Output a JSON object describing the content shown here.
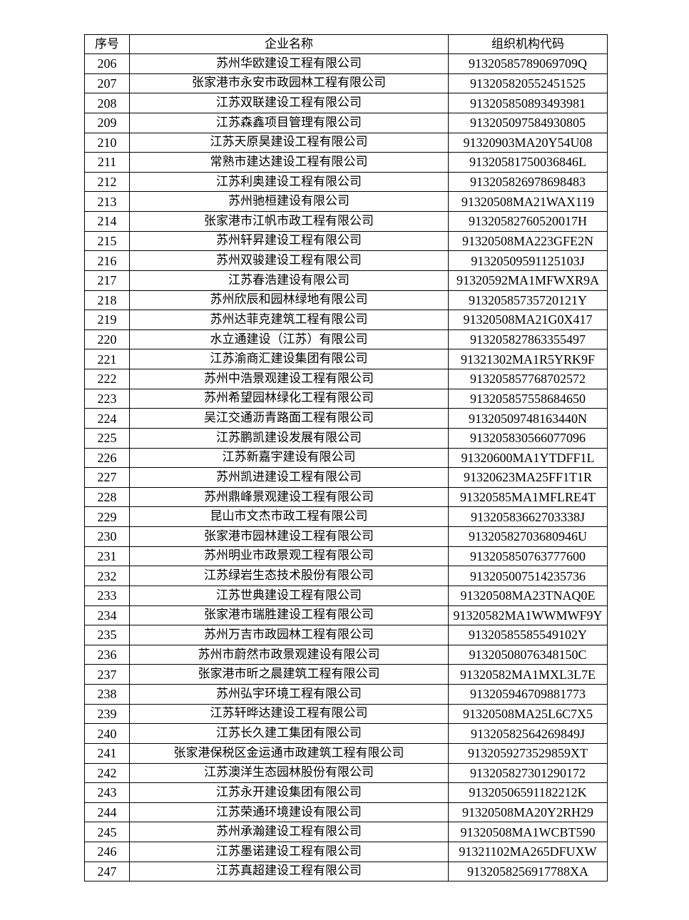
{
  "table": {
    "headers": [
      "序号",
      "企业名称",
      "组织机构代码"
    ],
    "rows": [
      [
        "206",
        "苏州华欧建设工程有限公司",
        "91320585789069709Q"
      ],
      [
        "207",
        "张家港市永安市政园林工程有限公司",
        "91320582055245152 5"
      ],
      [
        "208",
        "江苏双联建设工程有限公司",
        "913205850893493981"
      ],
      [
        "209",
        "江苏森鑫项目管理有限公司",
        "913205097584930805"
      ],
      [
        "210",
        "江苏天原昊建设工程有限公司",
        "91320903MA20Y54U08"
      ],
      [
        "211",
        "常熟市建达建设工程有限公司",
        "91320581750036846L"
      ],
      [
        "212",
        "江苏利奥建设工程有限公司",
        "913205826978698483"
      ],
      [
        "213",
        "苏州驰桓建设有限公司",
        "91320508MA21WAX119"
      ],
      [
        "214",
        "张家港市江帆市政工程有限公司",
        "91320582760520017H"
      ],
      [
        "215",
        "苏州轩昇建设工程有限公司",
        "91320508MA223GFE2N"
      ],
      [
        "216",
        "苏州双骏建设工程有限公司",
        "91320509591125103J"
      ],
      [
        "217",
        "江苏春浩建设有限公司",
        "91320592MA1MFWXR9A"
      ],
      [
        "218",
        "苏州欣辰和园林绿地有限公司",
        "91320585735720121Y"
      ],
      [
        "219",
        "苏州达菲克建筑工程有限公司",
        "91320508MA21G0X417"
      ],
      [
        "220",
        "水立通建设（江苏）有限公司",
        "913205827863355497"
      ],
      [
        "221",
        "江苏渝商汇建设集团有限公司",
        "91321302MA1R5YRK9F"
      ],
      [
        "222",
        "苏州中浩景观建设工程有限公司",
        "913205857768702572"
      ],
      [
        "223",
        "苏州希望园林绿化工程有限公司",
        "913205857558684650"
      ],
      [
        "224",
        "吴江交通沥青路面工程有限公司",
        "91320509748163440N"
      ],
      [
        "225",
        "江苏鹏凯建设发展有限公司",
        "913205830566077096"
      ],
      [
        "226",
        "江苏新嘉宇建设有限公司",
        "91320600MA1YTDFF1L"
      ],
      [
        "227",
        "苏州凯进建设工程有限公司",
        "91320623MA25FF1T1R"
      ],
      [
        "228",
        "苏州鼎峰景观建设工程有限公司",
        "91320585MA1MFLRE4T"
      ],
      [
        "229",
        "昆山市文杰市政工程有限公司",
        "91320583662703338J"
      ],
      [
        "230",
        "张家港市园林建设工程有限公司",
        "91320582703680946U"
      ],
      [
        "231",
        "苏州明业市政景观工程有限公司",
        "913205850763777600"
      ],
      [
        "232",
        "江苏绿岩生态技术股份有限公司",
        "913205007514235736"
      ],
      [
        "233",
        "江苏世典建设工程有限公司",
        "91320508MA23TNAQ0E"
      ],
      [
        "234",
        "张家港市瑞胜建设工程有限公司",
        "91320582MA1WWMWF9Y"
      ],
      [
        "235",
        "苏州万吉市政园林工程有限公司",
        "91320585585549102Y"
      ],
      [
        "236",
        "苏州市蔚然市政景观建设有限公司",
        "91320508076348150C"
      ],
      [
        "237",
        "张家港市昕之晨建筑工程有限公司",
        "91320582MA1MXL3L7E"
      ],
      [
        "238",
        "苏州弘宇环境工程有限公司",
        "913205946709881773"
      ],
      [
        "239",
        "江苏轩晔达建设工程有限公司",
        "91320508MA25L6C7X5"
      ],
      [
        "240",
        "江苏长久建工集团有限公司",
        "91320582564269849J"
      ],
      [
        "241",
        "张家港保税区金运通市政建筑工程有限公司",
        "91320592735298 59XT"
      ],
      [
        "242",
        "江苏澳洋生态园林股份有限公司",
        "913205827301290172"
      ],
      [
        "243",
        "江苏永开建设集团有限公司",
        "91320506591182212K"
      ],
      [
        "244",
        "江苏荣通环境建设有限公司",
        "91320508MA20Y2RH29"
      ],
      [
        "245",
        "苏州承瀚建设工程有限公司",
        "91320508MA1WCBT590"
      ],
      [
        "246",
        "江苏墨诺建设工程有限公司",
        "91321102MA265DFUXW"
      ],
      [
        "247",
        "江苏真超建设工程有限公司",
        "91320582569177 88XA"
      ]
    ]
  }
}
